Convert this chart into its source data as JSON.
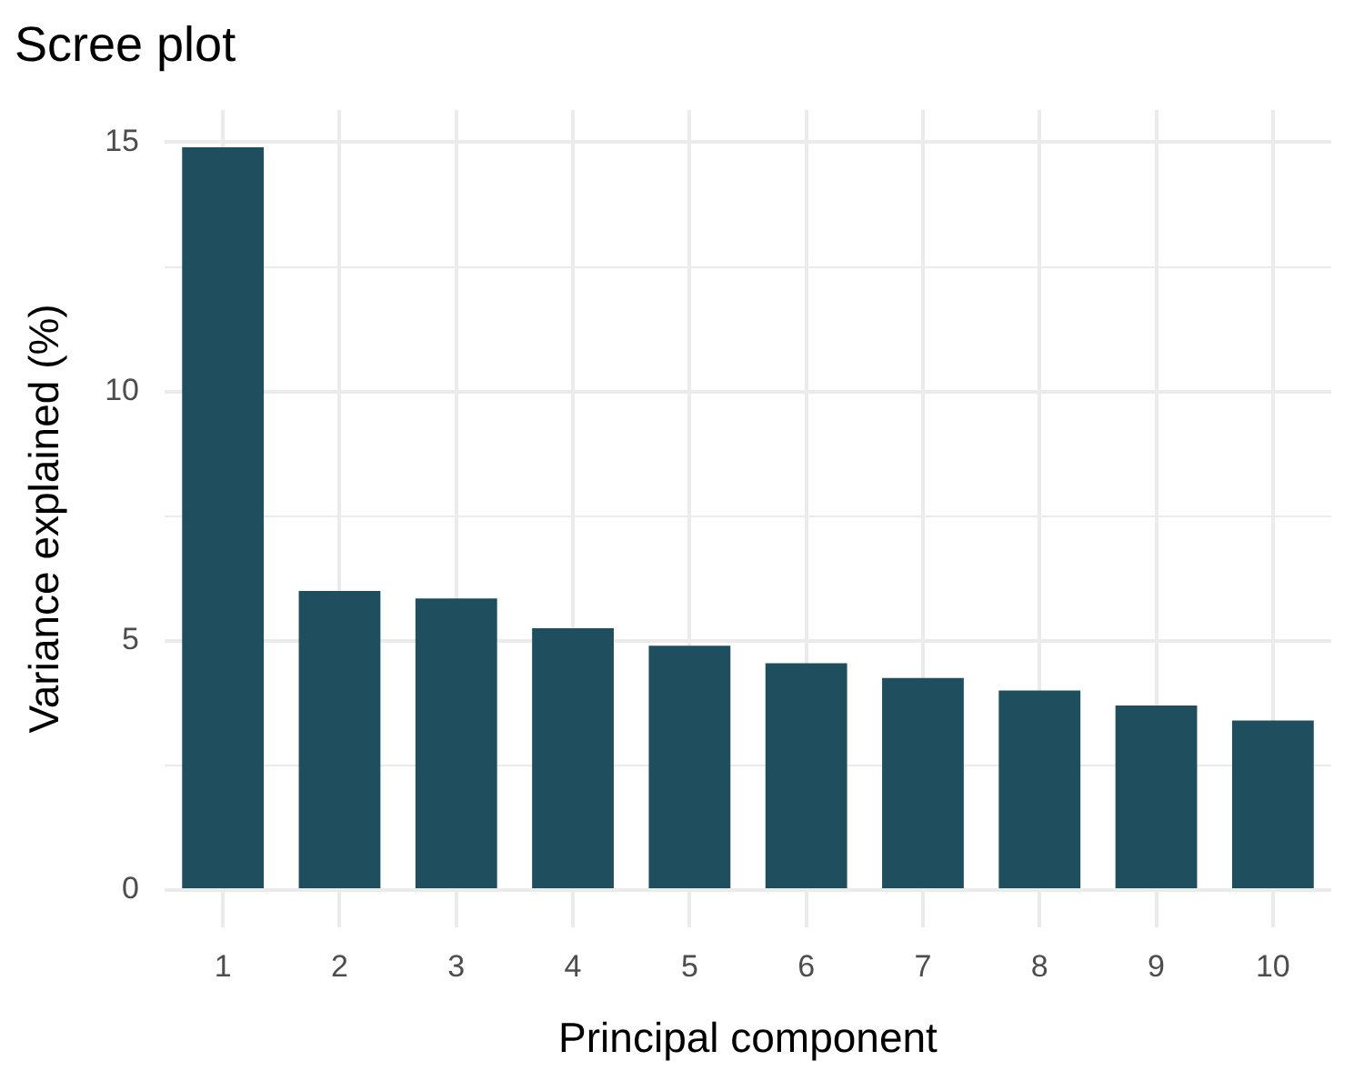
{
  "chart_data": {
    "type": "bar",
    "title": "Scree plot",
    "xlabel": "Principal component",
    "ylabel": "Variance explained (%)",
    "categories": [
      "1",
      "2",
      "3",
      "4",
      "5",
      "6",
      "7",
      "8",
      "9",
      "10"
    ],
    "values": [
      14.9,
      6.0,
      5.85,
      5.25,
      4.9,
      4.55,
      4.25,
      4.0,
      3.7,
      3.4
    ],
    "color": "#1f4e5f",
    "ylim": [
      -0.75,
      15.65
    ],
    "yticks": [
      0,
      {
        "value": 2.5,
        "label": null
      },
      5,
      {
        "value": 7.5,
        "label": null
      },
      10,
      {
        "value": 12.5,
        "label": null
      },
      15
    ],
    "grid": true,
    "legend": false
  }
}
